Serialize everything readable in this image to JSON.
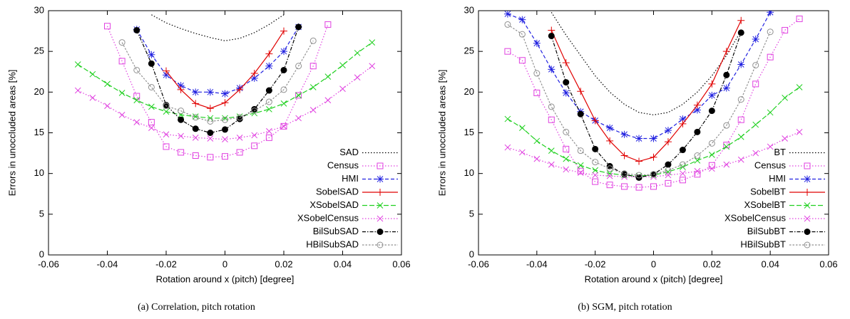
{
  "chart_data": [
    {
      "type": "line",
      "xlabel": "Rotation around x (pitch) [degree]",
      "ylabel": "Errors in unoccluded areas [%]",
      "caption": "(a) Correlation, pitch rotation",
      "x": [
        -0.05,
        -0.045,
        -0.04,
        -0.035,
        -0.03,
        -0.025,
        -0.02,
        -0.015,
        -0.01,
        -0.005,
        0,
        0.005,
        0.01,
        0.015,
        0.02,
        0.025,
        0.03,
        0.035,
        0.04,
        0.045,
        0.05
      ],
      "xlim": [
        -0.06,
        0.06
      ],
      "xticks": [
        -0.06,
        -0.04,
        -0.02,
        0,
        0.02,
        0.04,
        0.06
      ],
      "ylim": [
        0,
        30
      ],
      "yticks": [
        0,
        5,
        10,
        15,
        20,
        25,
        30
      ],
      "legend": "lower right",
      "series": [
        {
          "name": "SAD",
          "color": "#000000",
          "dash": "dotted",
          "marker": "none",
          "values": [
            null,
            null,
            null,
            null,
            null,
            29.5,
            28.5,
            27.8,
            27.2,
            26.7,
            26.3,
            26.6,
            27.3,
            28.3,
            29.5,
            null,
            null,
            null,
            null,
            null,
            null
          ]
        },
        {
          "name": "Census",
          "color": "#e040e0",
          "dash": "dotted",
          "marker": "square",
          "values": [
            null,
            null,
            28.1,
            23.8,
            19.5,
            16.3,
            13.3,
            12.6,
            12.2,
            12.0,
            12.1,
            12.6,
            13.4,
            14.4,
            15.8,
            19.6,
            23.2,
            28.3,
            null,
            null,
            null
          ]
        },
        {
          "name": "HMI",
          "color": "#2020e0",
          "dash": "dashed",
          "marker": "star",
          "values": [
            null,
            null,
            null,
            null,
            27.7,
            24.6,
            22.1,
            20.8,
            20.0,
            20.0,
            19.8,
            20.5,
            21.7,
            23.2,
            25.0,
            28.0,
            null,
            null,
            null,
            null,
            null
          ]
        },
        {
          "name": "SobelSAD",
          "color": "#e00000",
          "dash": "solid",
          "marker": "plus",
          "values": [
            null,
            null,
            null,
            null,
            null,
            null,
            22.6,
            20.3,
            18.6,
            18.0,
            18.7,
            20.3,
            22.3,
            24.7,
            27.5,
            null,
            null,
            null,
            null,
            null,
            null
          ]
        },
        {
          "name": "XSobelSAD",
          "color": "#20d020",
          "dash": "longdash",
          "marker": "x",
          "values": [
            23.4,
            22.2,
            21.0,
            19.9,
            19.0,
            18.2,
            17.6,
            17.2,
            17.0,
            16.8,
            16.8,
            17.0,
            17.4,
            17.9,
            18.6,
            19.6,
            20.6,
            21.9,
            23.3,
            24.8,
            26.1
          ]
        },
        {
          "name": "XSobelCensus",
          "color": "#e040e0",
          "dash": "dotted",
          "marker": "x",
          "values": [
            20.2,
            19.3,
            18.3,
            17.2,
            16.3,
            15.6,
            14.8,
            14.6,
            14.4,
            14.3,
            14.2,
            14.4,
            14.7,
            15.2,
            15.8,
            16.8,
            17.8,
            19.0,
            20.4,
            21.8,
            23.2
          ]
        },
        {
          "name": "BilSubSAD",
          "color": "#000000",
          "dash": "dashdot",
          "marker": "filled-circle",
          "values": [
            null,
            null,
            null,
            null,
            27.6,
            23.5,
            18.4,
            16.6,
            15.5,
            15.0,
            15.4,
            16.7,
            17.9,
            20.2,
            22.7,
            28.0,
            null,
            null,
            null,
            null,
            null
          ]
        },
        {
          "name": "HBilSubSAD",
          "color": "#909090",
          "dash": "shortdash",
          "marker": "open-circle",
          "values": [
            null,
            null,
            null,
            26.1,
            22.7,
            20.6,
            18.3,
            17.7,
            16.9,
            16.4,
            16.6,
            16.9,
            17.7,
            18.8,
            20.3,
            23.2,
            26.3,
            null,
            null,
            null,
            null
          ]
        }
      ]
    },
    {
      "type": "line",
      "xlabel": "Rotation around x (pitch) [degree]",
      "ylabel": "Errors in unoccluded areas [%]",
      "caption": "(b) SGM, pitch rotation",
      "x": [
        -0.05,
        -0.045,
        -0.04,
        -0.035,
        -0.03,
        -0.025,
        -0.02,
        -0.015,
        -0.01,
        -0.005,
        0,
        0.005,
        0.01,
        0.015,
        0.02,
        0.025,
        0.03,
        0.035,
        0.04,
        0.045,
        0.05
      ],
      "xlim": [
        -0.06,
        0.06
      ],
      "xticks": [
        -0.06,
        -0.04,
        -0.02,
        0,
        0.02,
        0.04,
        0.06
      ],
      "ylim": [
        0,
        30
      ],
      "yticks": [
        0,
        5,
        10,
        15,
        20,
        25,
        30
      ],
      "legend": "lower right",
      "series": [
        {
          "name": "BT",
          "color": "#000000",
          "dash": "dotted",
          "marker": "none",
          "values": [
            null,
            null,
            null,
            29.8,
            27.0,
            24.5,
            22.0,
            20.0,
            18.5,
            17.5,
            17.2,
            17.5,
            18.5,
            20.0,
            22.0,
            24.5,
            27.5,
            null,
            null,
            null,
            null
          ]
        },
        {
          "name": "Census",
          "color": "#e040e0",
          "dash": "dotted",
          "marker": "square",
          "values": [
            25.0,
            23.9,
            19.9,
            16.6,
            13.0,
            10.3,
            9.0,
            8.6,
            8.4,
            8.3,
            8.4,
            8.8,
            9.2,
            9.9,
            11.0,
            13.5,
            16.6,
            21.0,
            24.3,
            27.6,
            29.0
          ]
        },
        {
          "name": "HMI",
          "color": "#2020e0",
          "dash": "dashed",
          "marker": "star",
          "values": [
            29.6,
            28.9,
            26.0,
            22.8,
            19.9,
            17.6,
            16.5,
            15.6,
            14.8,
            14.3,
            14.3,
            15.3,
            16.7,
            17.8,
            19.6,
            20.5,
            23.4,
            26.5,
            29.8,
            null,
            null
          ]
        },
        {
          "name": "SobelBT",
          "color": "#e00000",
          "dash": "solid",
          "marker": "plus",
          "values": [
            null,
            null,
            null,
            27.6,
            23.6,
            20.1,
            16.5,
            14.0,
            12.2,
            11.5,
            12.0,
            13.9,
            16.1,
            18.4,
            21.0,
            25.0,
            28.8,
            null,
            null,
            null,
            null
          ]
        },
        {
          "name": "XSobelBT",
          "color": "#20d020",
          "dash": "longdash",
          "marker": "x",
          "values": [
            16.7,
            15.6,
            14.0,
            12.8,
            11.8,
            11.0,
            10.4,
            10.0,
            9.8,
            9.7,
            9.8,
            10.2,
            10.8,
            11.6,
            12.3,
            13.3,
            14.5,
            16.0,
            17.5,
            19.3,
            20.6
          ]
        },
        {
          "name": "XSobelCensus",
          "color": "#e040e0",
          "dash": "dotted",
          "marker": "x",
          "values": [
            13.2,
            12.6,
            11.8,
            11.1,
            10.5,
            10.1,
            9.8,
            9.7,
            9.6,
            9.6,
            9.6,
            9.8,
            10.0,
            10.3,
            10.6,
            11.1,
            11.7,
            12.5,
            13.3,
            14.3,
            15.1
          ]
        },
        {
          "name": "BilSubBT",
          "color": "#000000",
          "dash": "dashdot",
          "marker": "filled-circle",
          "values": [
            null,
            null,
            null,
            26.9,
            21.2,
            17.3,
            13.0,
            10.9,
            9.9,
            9.5,
            9.9,
            11.1,
            12.9,
            15.1,
            17.7,
            22.1,
            27.3,
            null,
            null,
            null,
            null
          ]
        },
        {
          "name": "HBilSubBT",
          "color": "#909090",
          "dash": "shortdash",
          "marker": "open-circle",
          "values": [
            28.3,
            27.1,
            22.3,
            18.2,
            15.1,
            12.8,
            11.4,
            10.6,
            10.0,
            9.8,
            9.9,
            10.4,
            11.1,
            12.2,
            13.7,
            15.9,
            19.1,
            23.3,
            27.4,
            null,
            null
          ]
        }
      ]
    }
  ]
}
